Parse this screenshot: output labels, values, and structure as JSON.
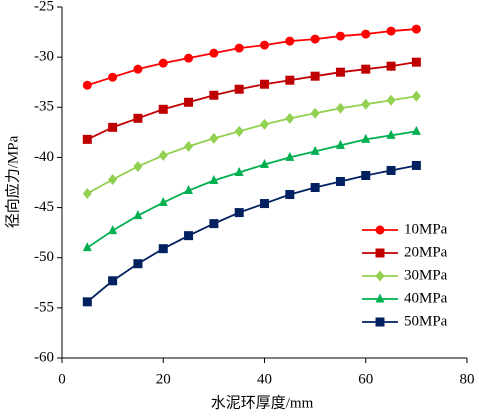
{
  "chart_data": {
    "type": "line",
    "x_label": "水泥环厚度/mm",
    "y_label": "径向应力/MPa",
    "x": [
      5,
      10,
      15,
      20,
      25,
      30,
      35,
      40,
      45,
      50,
      55,
      60,
      65,
      70
    ],
    "series": [
      {
        "name": "10MPa",
        "color": "#ff0000",
        "marker": "circle",
        "values": [
          -32.8,
          -32.0,
          -31.2,
          -30.6,
          -30.1,
          -29.6,
          -29.1,
          -28.8,
          -28.4,
          -28.2,
          -27.9,
          -27.7,
          -27.4,
          -27.2
        ]
      },
      {
        "name": "20MPa",
        "color": "#c00000",
        "marker": "square",
        "values": [
          -38.2,
          -37.0,
          -36.1,
          -35.2,
          -34.5,
          -33.8,
          -33.2,
          -32.7,
          -32.3,
          -31.9,
          -31.5,
          -31.2,
          -30.9,
          -30.5
        ]
      },
      {
        "name": "30MPa",
        "color": "#92d050",
        "marker": "diamond",
        "values": [
          -43.6,
          -42.2,
          -40.9,
          -39.8,
          -38.9,
          -38.1,
          -37.4,
          -36.7,
          -36.1,
          -35.6,
          -35.1,
          -34.7,
          -34.3,
          -33.9
        ]
      },
      {
        "name": "40MPa",
        "color": "#00b050",
        "marker": "triangle",
        "values": [
          -49.0,
          -47.3,
          -45.8,
          -44.5,
          -43.3,
          -42.3,
          -41.5,
          -40.7,
          -40.0,
          -39.4,
          -38.8,
          -38.2,
          -37.8,
          -37.4
        ]
      },
      {
        "name": "50MPa",
        "color": "#002060",
        "marker": "square",
        "values": [
          -54.4,
          -52.3,
          -50.6,
          -49.1,
          -47.8,
          -46.6,
          -45.5,
          -44.6,
          -43.7,
          -43.0,
          -42.4,
          -41.8,
          -41.3,
          -40.8
        ]
      }
    ],
    "xlim": [
      0,
      80
    ],
    "xticks": [
      0,
      20,
      40,
      60,
      80
    ],
    "ylim": [
      -60,
      -25
    ],
    "yticks": [
      -60,
      -55,
      -50,
      -45,
      -40,
      -35,
      -30,
      -25
    ],
    "grid": false,
    "legend": "lower-right"
  }
}
